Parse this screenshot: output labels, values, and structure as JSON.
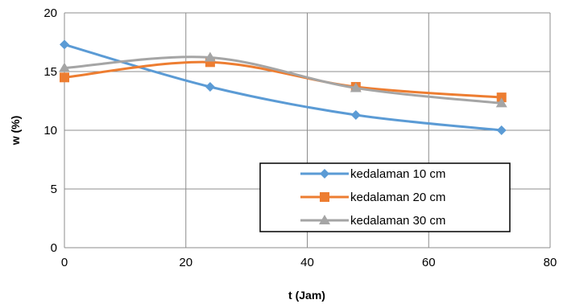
{
  "chart_data": {
    "type": "line",
    "xlabel": "t (Jam)",
    "ylabel": "w (%)",
    "xlim": [
      0,
      80
    ],
    "ylim": [
      0,
      20
    ],
    "xticks": [
      0,
      20,
      40,
      60,
      80
    ],
    "yticks": [
      0,
      5,
      10,
      15,
      20
    ],
    "xtick_labels": [
      "0",
      "20",
      "40",
      "60",
      "80"
    ],
    "ytick_labels": [
      "0",
      "5",
      "10",
      "15",
      "20"
    ],
    "grid": true,
    "smooth": true,
    "legend": "bottom-right",
    "x": [
      0,
      24,
      48,
      72
    ],
    "series": [
      {
        "name": "kedalaman 10 cm",
        "values": [
          17.3,
          13.7,
          11.3,
          10.0
        ],
        "color": "#5B9BD5",
        "marker": "diamond"
      },
      {
        "name": "kedalaman 20 cm",
        "values": [
          14.5,
          15.8,
          13.7,
          12.8
        ],
        "color": "#ED7D31",
        "marker": "square"
      },
      {
        "name": "kedalaman 30 cm",
        "values": [
          15.3,
          16.2,
          13.6,
          12.3
        ],
        "color": "#A5A5A5",
        "marker": "triangle"
      }
    ]
  }
}
